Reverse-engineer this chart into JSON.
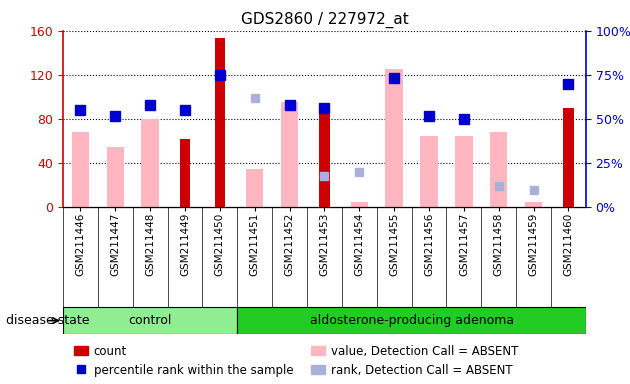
{
  "title": "GDS2860 / 227972_at",
  "samples": [
    "GSM211446",
    "GSM211447",
    "GSM211448",
    "GSM211449",
    "GSM211450",
    "GSM211451",
    "GSM211452",
    "GSM211453",
    "GSM211454",
    "GSM211455",
    "GSM211456",
    "GSM211457",
    "GSM211458",
    "GSM211459",
    "GSM211460"
  ],
  "count_values": [
    null,
    null,
    null,
    62,
    153,
    null,
    null,
    85,
    null,
    null,
    null,
    null,
    null,
    null,
    90
  ],
  "percentile_rank": [
    55,
    52,
    58,
    55,
    75,
    null,
    58,
    56,
    null,
    73,
    52,
    50,
    null,
    null,
    70
  ],
  "value_absent": [
    68,
    55,
    80,
    null,
    null,
    35,
    95,
    null,
    5,
    125,
    65,
    65,
    68,
    5,
    null
  ],
  "rank_absent": [
    null,
    null,
    null,
    null,
    null,
    62,
    null,
    18,
    20,
    null,
    null,
    null,
    12,
    10,
    null
  ],
  "ylim_left": [
    0,
    160
  ],
  "ylim_right": [
    0,
    100
  ],
  "yticks_left": [
    0,
    40,
    80,
    120,
    160
  ],
  "yticks_right": [
    0,
    25,
    50,
    75,
    100
  ],
  "yticklabels_right": [
    "0%",
    "25%",
    "50%",
    "75%",
    "100%"
  ],
  "color_count": "#cc0000",
  "color_percentile": "#0000cc",
  "color_value_absent": "#ffb6c1",
  "color_rank_absent": "#aab0d8",
  "group_control_color": "#90ee90",
  "group_adenoma_color": "#22cc22",
  "control_count": 5,
  "adenoma_count": 10,
  "disease_state_label": "disease state"
}
